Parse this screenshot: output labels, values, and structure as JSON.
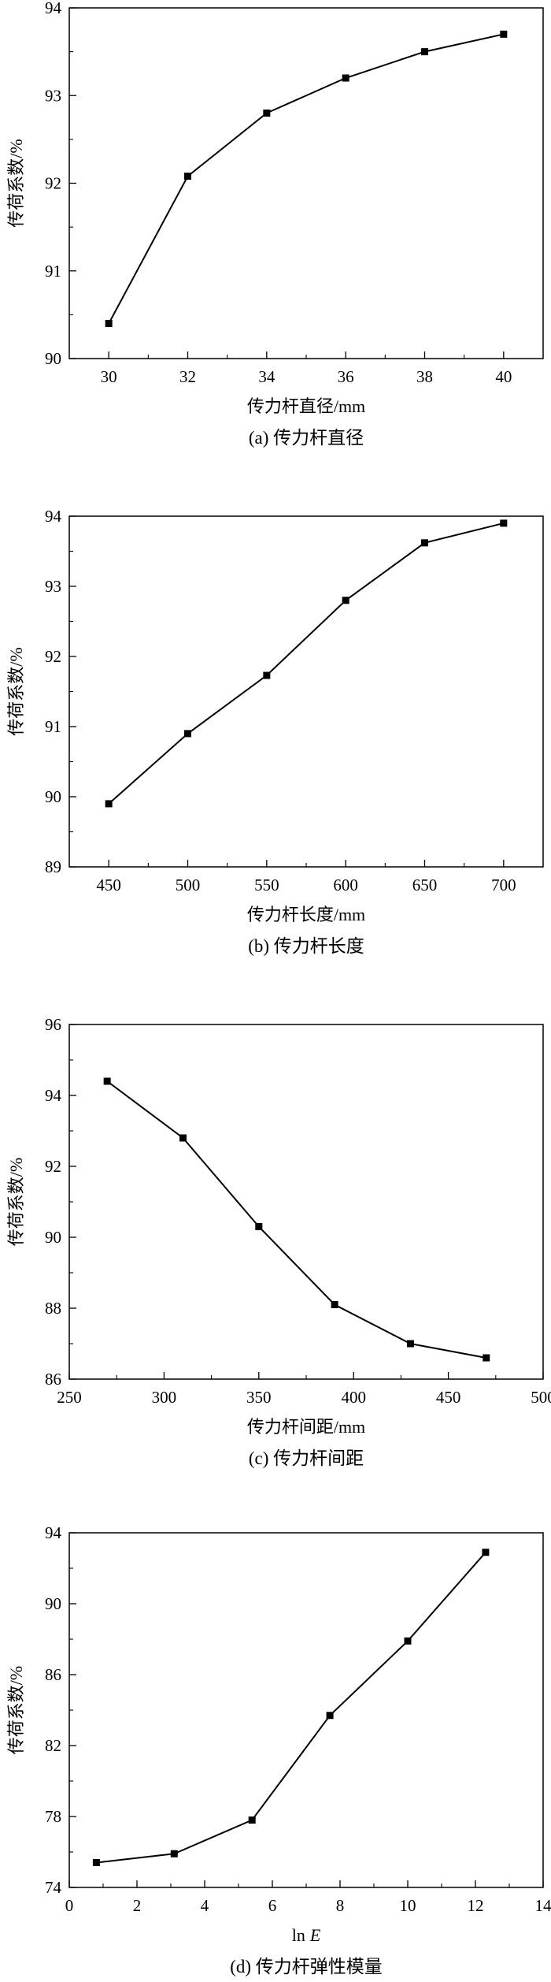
{
  "chart_data": [
    {
      "type": "line",
      "xlabel": "传力杆直径/mm",
      "ylabel": "传荷系数/%",
      "caption": "(a) 传力杆直径",
      "xlim": [
        29,
        41
      ],
      "ylim": [
        90,
        94
      ],
      "xticks": [
        30,
        32,
        34,
        36,
        38,
        40
      ],
      "yticks": [
        90,
        91,
        92,
        93,
        94
      ],
      "x": [
        30,
        32,
        34,
        36,
        38,
        40
      ],
      "y": [
        90.4,
        92.08,
        92.8,
        93.2,
        93.5,
        93.7
      ],
      "marker": "square",
      "grid": false
    },
    {
      "type": "line",
      "xlabel": "传力杆长度/mm",
      "ylabel": "传荷系数/%",
      "caption": "(b) 传力杆长度",
      "xlim": [
        425,
        725
      ],
      "ylim": [
        89,
        94
      ],
      "xticks": [
        450,
        500,
        550,
        600,
        650,
        700
      ],
      "yticks": [
        89,
        90,
        91,
        92,
        93,
        94
      ],
      "x": [
        450,
        500,
        550,
        600,
        650,
        700
      ],
      "y": [
        89.9,
        90.9,
        91.73,
        92.8,
        93.62,
        93.9
      ],
      "marker": "square",
      "grid": false
    },
    {
      "type": "line",
      "xlabel": "传力杆间距/mm",
      "ylabel": "传荷系数/%",
      "caption": "(c) 传力杆间距",
      "xlim": [
        250,
        500
      ],
      "ylim": [
        86,
        96
      ],
      "xticks": [
        250,
        300,
        350,
        400,
        450,
        500
      ],
      "yticks": [
        86,
        88,
        90,
        92,
        94,
        96
      ],
      "x": [
        270,
        310,
        350,
        390,
        430,
        470
      ],
      "y": [
        94.4,
        92.8,
        90.3,
        88.1,
        87.0,
        86.6
      ],
      "marker": "square",
      "grid": false
    },
    {
      "type": "line",
      "xlabel": "ln",
      "xlabel_italic": "E",
      "ylabel": "传荷系数/%",
      "caption": "(d) 传力杆弹性模量",
      "xlim": [
        0,
        14
      ],
      "ylim": [
        74,
        94
      ],
      "xticks": [
        0,
        2,
        4,
        6,
        8,
        10,
        12,
        14
      ],
      "yticks": [
        74,
        78,
        82,
        86,
        90,
        94
      ],
      "x": [
        0.8,
        3.1,
        5.4,
        7.7,
        10.0,
        12.3
      ],
      "y": [
        75.4,
        75.9,
        77.8,
        83.7,
        87.9,
        92.9
      ],
      "marker": "square",
      "grid": false
    }
  ]
}
